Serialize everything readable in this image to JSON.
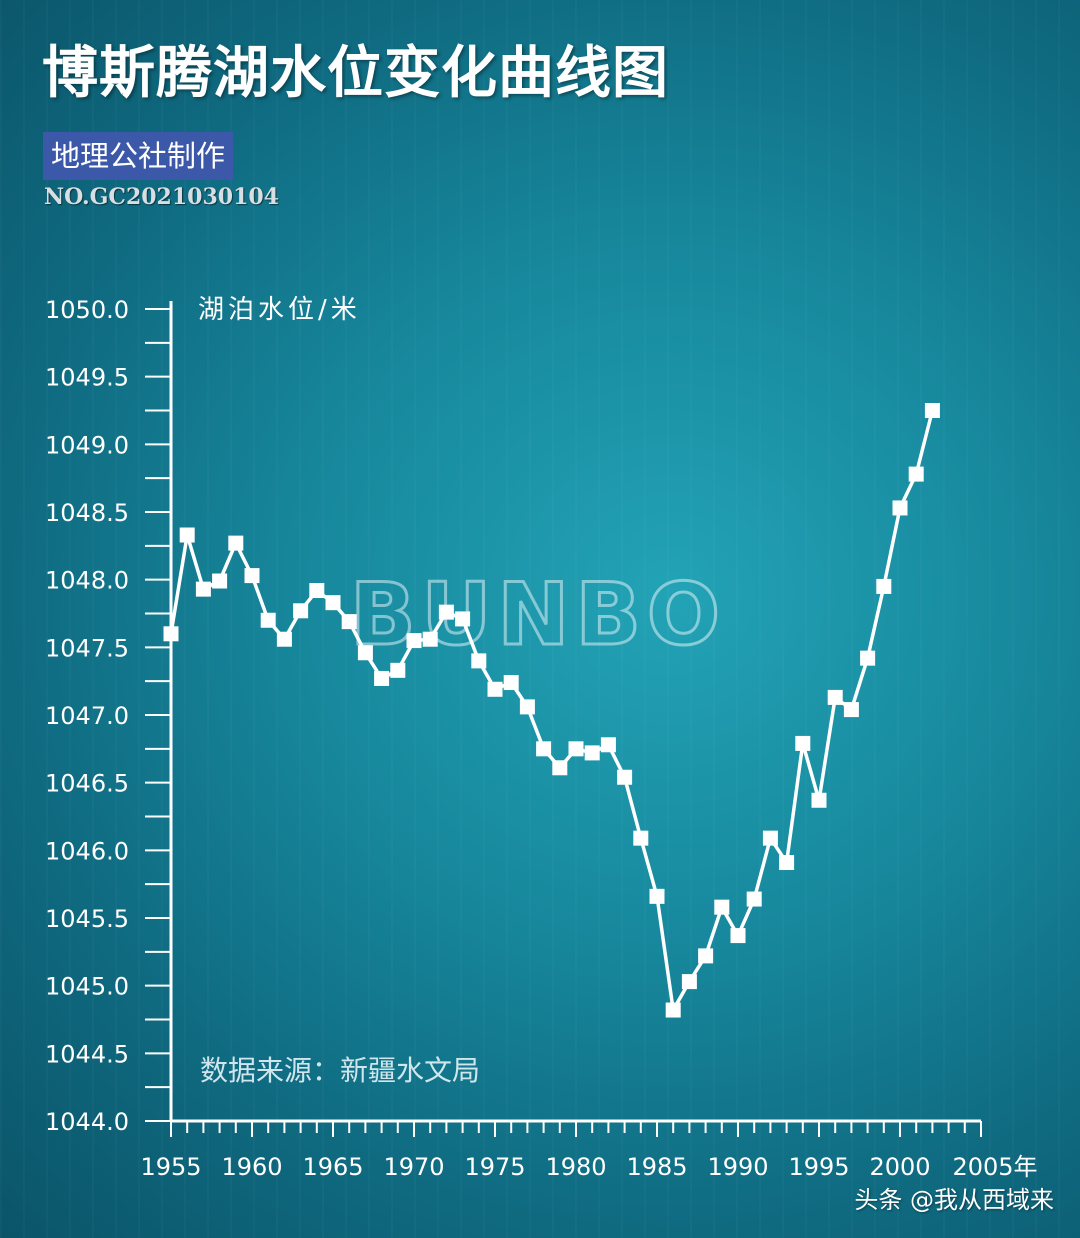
{
  "header": {
    "title": "博斯腾湖水位变化曲线图",
    "badge": "地理公社制作",
    "serial": "NO.GC2021030104"
  },
  "watermark": "BUNBO",
  "footer": {
    "credit": "头条 @我从西域来"
  },
  "colors": {
    "line": "#ffffff",
    "badge": "#3c58a8",
    "background": "#17889d"
  },
  "chart_data": {
    "type": "line",
    "title": "博斯腾湖水位变化曲线图",
    "ylabel": "湖泊水位/米",
    "xlabel": "",
    "x_unit_suffix": "年",
    "source_note": "数据来源：新疆水文局",
    "ylim": [
      1044.0,
      1050.0
    ],
    "xlim": [
      1955,
      2005
    ],
    "yticks": [
      "1044.0",
      "1044.5",
      "1045.0",
      "1045.5",
      "1046.0",
      "1046.5",
      "1047.0",
      "1047.5",
      "1048.0",
      "1048.5",
      "1049.0",
      "1049.5",
      "1050.0"
    ],
    "xticks": [
      "1955",
      "1960",
      "1965",
      "1970",
      "1975",
      "1980",
      "1985",
      "1990",
      "1995",
      "2000",
      "2005年"
    ],
    "grid": false,
    "marker": "square",
    "x": [
      1955,
      1956,
      1957,
      1958,
      1959,
      1960,
      1961,
      1962,
      1963,
      1964,
      1965,
      1966,
      1967,
      1968,
      1969,
      1970,
      1971,
      1972,
      1973,
      1974,
      1975,
      1976,
      1977,
      1978,
      1979,
      1980,
      1981,
      1982,
      1983,
      1984,
      1985,
      1986,
      1987,
      1988,
      1989,
      1990,
      1991,
      1992,
      1993,
      1994,
      1995,
      1996,
      1997,
      1998,
      1999,
      2000,
      2001,
      2002
    ],
    "y": [
      1047.6,
      1048.33,
      1047.93,
      1047.99,
      1048.27,
      1048.03,
      1047.7,
      1047.56,
      1047.77,
      1047.92,
      1047.83,
      1047.69,
      1047.46,
      1047.27,
      1047.33,
      1047.55,
      1047.56,
      1047.76,
      1047.71,
      1047.4,
      1047.19,
      1047.24,
      1047.06,
      1046.75,
      1046.61,
      1046.75,
      1046.72,
      1046.78,
      1046.54,
      1046.09,
      1045.66,
      1044.82,
      1045.03,
      1045.22,
      1045.58,
      1045.37,
      1045.64,
      1046.09,
      1045.91,
      1046.79,
      1046.37,
      1047.13,
      1047.04,
      1047.42,
      1047.95,
      1048.53,
      1048.78,
      1049.25
    ]
  }
}
